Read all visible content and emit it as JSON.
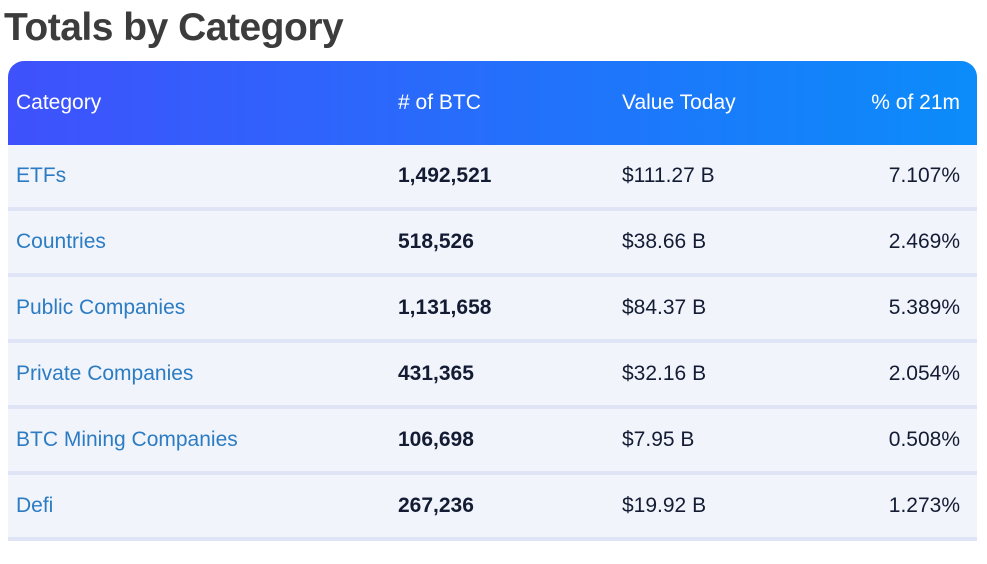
{
  "page": {
    "title": "Totals by Category"
  },
  "colors": {
    "header_gradient_left": "#3f51fc",
    "header_gradient_right": "#0b8cfa",
    "header_text": "#ffffff",
    "row_background": "#f2f4fc",
    "row_divider": "#e0e4f7",
    "category_link": "#2b7cc3",
    "cell_text": "#131c33",
    "title_text": "#3c3c3c"
  },
  "chart_data": {
    "type": "table",
    "title": "Totals by Category",
    "columns": [
      "Category",
      "# of BTC",
      "Value Today",
      "% of 21m"
    ],
    "rows": [
      [
        "ETFs",
        "1,492,521",
        "$111.27 B",
        "7.107%"
      ],
      [
        "Countries",
        "518,526",
        "$38.66 B",
        "2.469%"
      ],
      [
        "Public Companies",
        "1,131,658",
        "$84.37 B",
        "5.389%"
      ],
      [
        "Private Companies",
        "431,365",
        "$32.16 B",
        "2.054%"
      ],
      [
        "BTC Mining Companies",
        "106,698",
        "$7.95 B",
        "0.508%"
      ],
      [
        "Defi",
        "267,236",
        "$19.92 B",
        "1.273%"
      ]
    ]
  },
  "table": {
    "columns": [
      {
        "label": "Category"
      },
      {
        "label": "# of BTC"
      },
      {
        "label": "Value Today"
      },
      {
        "label": "% of 21m"
      }
    ],
    "rows": [
      {
        "category": "ETFs",
        "btc": "1,492,521",
        "value": "$111.27 B",
        "pct": "7.107%"
      },
      {
        "category": "Countries",
        "btc": "518,526",
        "value": "$38.66 B",
        "pct": "2.469%"
      },
      {
        "category": "Public Companies",
        "btc": "1,131,658",
        "value": "$84.37 B",
        "pct": "5.389%"
      },
      {
        "category": "Private Companies",
        "btc": "431,365",
        "value": "$32.16 B",
        "pct": "2.054%"
      },
      {
        "category": "BTC Mining Companies",
        "btc": "106,698",
        "value": "$7.95 B",
        "pct": "0.508%"
      },
      {
        "category": "Defi",
        "btc": "267,236",
        "value": "$19.92 B",
        "pct": "1.273%"
      }
    ]
  }
}
